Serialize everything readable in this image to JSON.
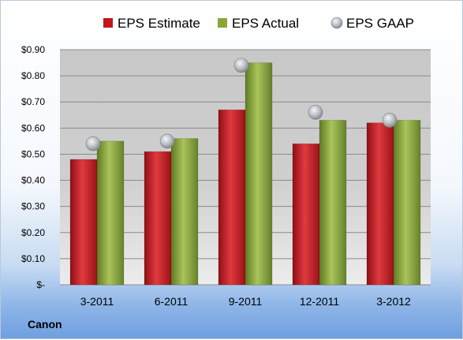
{
  "company": "Canon",
  "chart_data": {
    "type": "bar",
    "categories": [
      "3-2011",
      "6-2011",
      "9-2011",
      "12-2011",
      "3-2012"
    ],
    "series": [
      {
        "name": "EPS Estimate",
        "kind": "bar",
        "color": "#c0161c",
        "values": [
          0.48,
          0.51,
          0.67,
          0.54,
          0.62
        ]
      },
      {
        "name": "EPS Actual",
        "kind": "bar",
        "color": "#8aa636",
        "values": [
          0.55,
          0.56,
          0.85,
          0.63,
          0.63
        ]
      },
      {
        "name": "EPS GAAP",
        "kind": "marker",
        "color": "#b8bcc2",
        "values": [
          0.54,
          0.55,
          0.84,
          0.66,
          0.63
        ]
      }
    ],
    "y_ticks": [
      "$-",
      "$0.10",
      "$0.20",
      "$0.30",
      "$0.40",
      "$0.50",
      "$0.60",
      "$0.70",
      "$0.80",
      "$0.90"
    ],
    "ylim": [
      0,
      0.9
    ],
    "grid": true,
    "legend_position": "top"
  }
}
